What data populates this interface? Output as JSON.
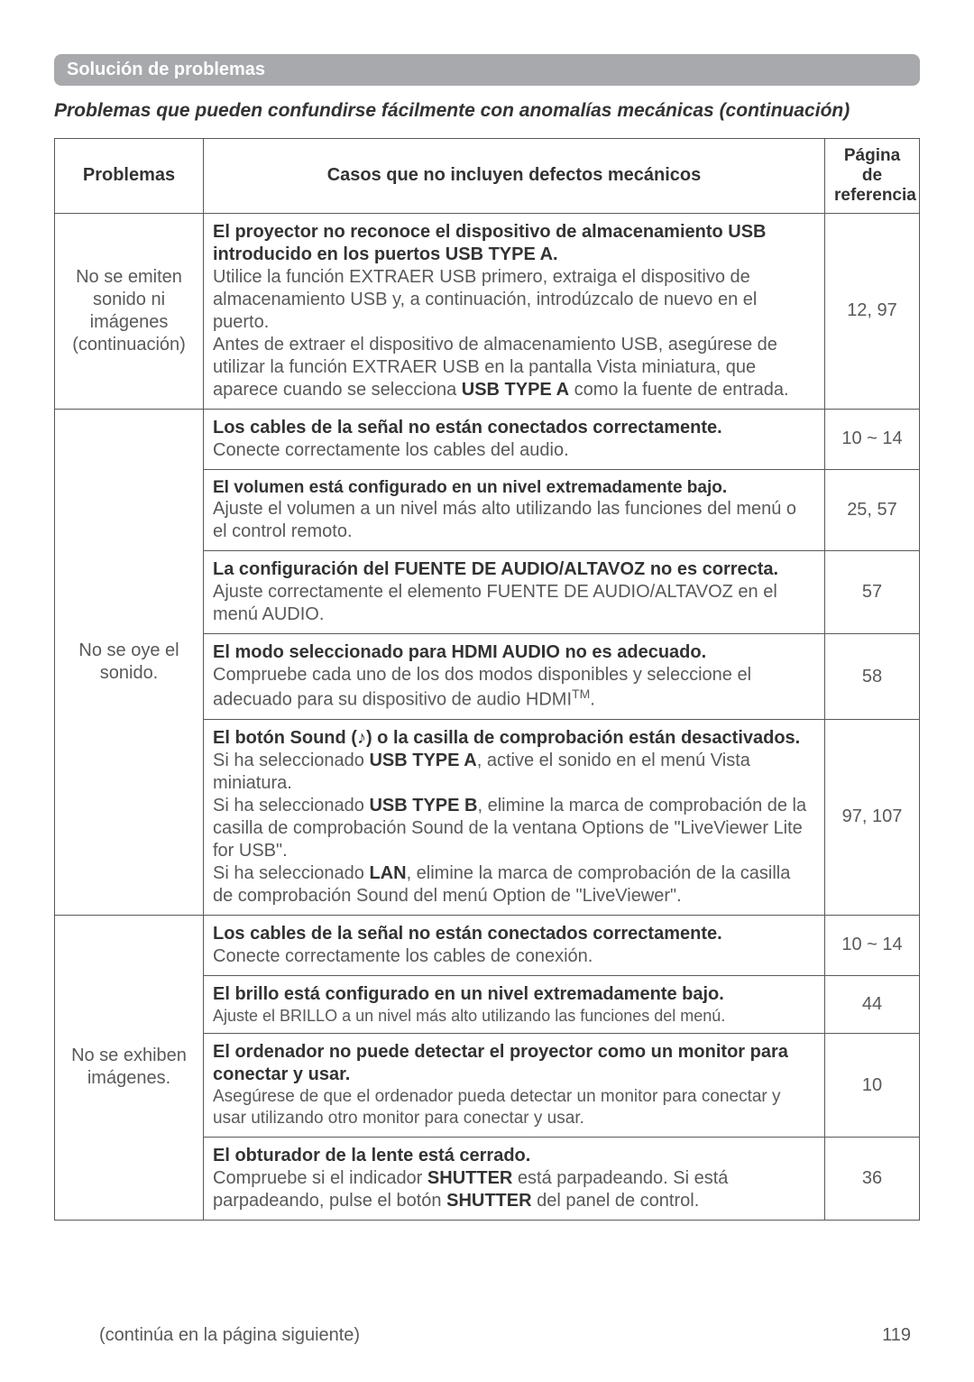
{
  "header": {
    "section_label": "Solución de problemas",
    "subtitle": "Problemas que pueden confundirse fácilmente con anomalías mecánicas (continuación)"
  },
  "table": {
    "columns": {
      "problems": "Problemas",
      "cases": "Casos que no incluyen defectos mecánicos",
      "reference": "Página de referencia"
    },
    "groups": [
      {
        "problem": "No se emiten sonido ni imágenes (continuación)",
        "rows": [
          {
            "lead": "El proyector no reconoce el dispositivo de almacenamiento USB introducido en los puertos USB TYPE A.",
            "body_before": "Utilice la función EXTRAER USB primero, extraiga el dispositivo de almacenamiento USB y, a continuación, introdúzcalo de nuevo en el puerto.\nAntes de extraer el dispositivo de almacenamiento USB, asegúrese de utilizar la función EXTRAER USB en la pantalla Vista miniatura, que aparece cuando se selecciona ",
            "bold_inline": "USB TYPE A",
            "body_after": " como la fuente de entrada.",
            "ref": "12, 97"
          }
        ]
      },
      {
        "problem": "No se oye el sonido.",
        "rows": [
          {
            "lead": "Los cables de la señal no están conectados correctamente.",
            "body": "Conecte correctamente los cables del audio.",
            "ref": "10 ~ 14"
          },
          {
            "lead": "El volumen está configurado en un nivel extremadamente bajo.",
            "body": "Ajuste el volumen a un nivel más alto utilizando las funciones del menú o el control remoto.",
            "ref": "25, 57"
          },
          {
            "lead": "La configuración del FUENTE DE AUDIO/ALTAVOZ no es correcta.",
            "body": "Ajuste correctamente el elemento FUENTE DE AUDIO/ALTAVOZ en el menú AUDIO.",
            "ref": "57"
          },
          {
            "lead": "El modo seleccionado para HDMI AUDIO no es adecuado.",
            "body_before": "Compruebe cada uno de los dos modos disponibles y seleccione el adecuado para su dispositivo de audio HDMI",
            "tm": "TM",
            "body_after": ".",
            "ref": "58"
          },
          {
            "lead": "El botón Sound (♪) o la casilla de comprobación están desactivados.",
            "body_p1_before": "Si ha seleccionado ",
            "body_p1_bold": "USB TYPE A",
            "body_p1_after": ", active el sonido en el menú Vista miniatura.",
            "body_p2_before": "Si ha seleccionado ",
            "body_p2_bold": "USB TYPE B",
            "body_p2_after": ", elimine la marca de comprobación de la casilla de comprobación Sound de la ventana Options de \"LiveViewer Lite for USB\".",
            "body_p3_before": "Si ha seleccionado ",
            "body_p3_bold": "LAN",
            "body_p3_after": ", elimine la marca de comprobación de la casilla de comprobación Sound del menú Option de \"LiveViewer\".",
            "ref": "97, 107"
          }
        ]
      },
      {
        "problem": "No se exhiben imágenes.",
        "rows": [
          {
            "lead": "Los cables de la señal no están conectados correctamente.",
            "body": "Conecte correctamente los cables de conexión.",
            "ref": "10 ~ 14"
          },
          {
            "lead": "El brillo está configurado en un nivel extremadamente bajo.",
            "body": "Ajuste el BRILLO a un nivel más alto utilizando las funciones del menú.",
            "ref": "44"
          },
          {
            "lead": "El ordenador no puede detectar el proyector como un monitor para conectar y usar.",
            "body": "Asegúrese de que el ordenador pueda detectar un monitor para conectar y usar utilizando otro monitor para conectar y usar.",
            "ref": "10"
          },
          {
            "lead": "El obturador de la lente está cerrado.",
            "body_before": "Compruebe si el indicador ",
            "bold1": "SHUTTER",
            "body_mid": " está parpadeando. Si está parpadeando, pulse el botón ",
            "bold2": "SHUTTER",
            "body_after": " del panel de control.",
            "ref": "36"
          }
        ]
      }
    ]
  },
  "footer": {
    "continue_text": "(continúa en la página siguiente)",
    "page_number": "119"
  }
}
